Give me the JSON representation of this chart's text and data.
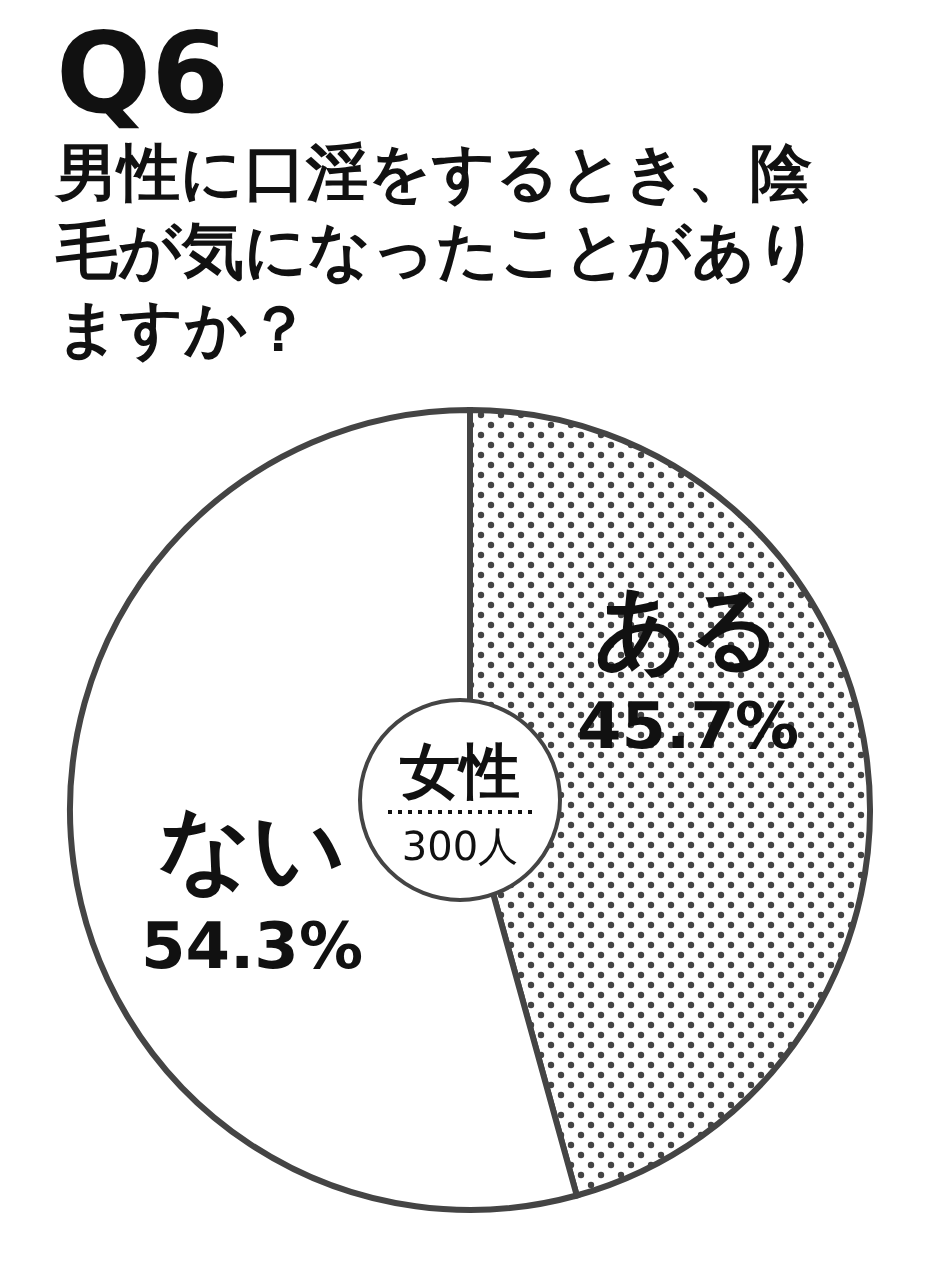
{
  "chart_data": {
    "type": "pie",
    "title": "Q6",
    "subtitle": "男性に口淫をするとき、陰毛が気になったことがありますか？",
    "categories": [
      "ある",
      "ない"
    ],
    "values": [
      45.7,
      54.3
    ],
    "colors": [
      "#444444",
      "#ffffff"
    ],
    "value_labels": [
      "45.7%",
      "54.3%"
    ],
    "annotations": [
      "女性",
      "300人"
    ]
  }
}
